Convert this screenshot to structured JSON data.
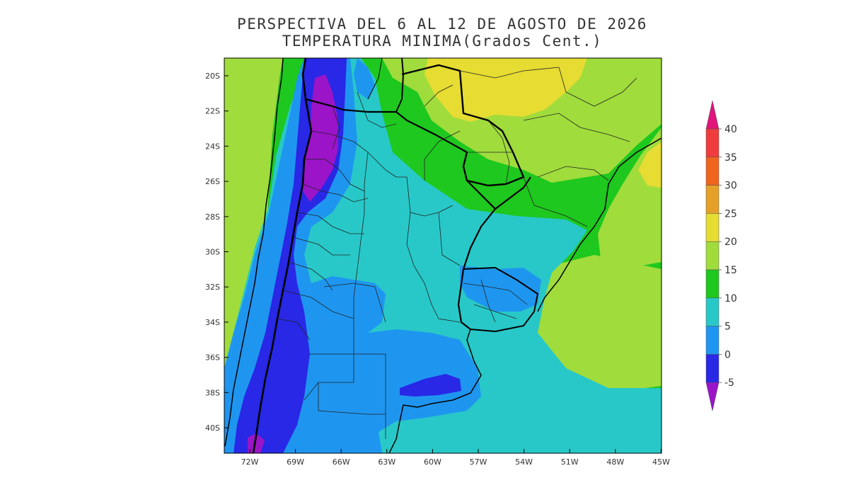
{
  "title": {
    "line1": "PERSPECTIVA DEL 6 AL 12 DE AGOSTO DE 2026",
    "line2": "TEMPERATURA MINIMA(Grados Cent.)"
  },
  "map": {
    "lat_labels": [
      "20S",
      "22S",
      "24S",
      "26S",
      "28S",
      "30S",
      "32S",
      "34S",
      "36S",
      "38S",
      "40S"
    ],
    "lon_labels": [
      "72W",
      "69W",
      "66W",
      "63W",
      "60W",
      "57W",
      "54W",
      "51W",
      "48W",
      "45W"
    ]
  },
  "legend": {
    "labels": [
      "40",
      "35",
      "30",
      "25",
      "20",
      "15",
      "10",
      "5",
      "0",
      "-5"
    ],
    "colors": {
      "above_40": "#e0147a",
      "35_40": "#f03c3c",
      "30_35": "#f0641e",
      "25_30": "#e6a028",
      "20_25": "#e6dc32",
      "15_20": "#a0dc3c",
      "10_15": "#1ec81e",
      "5_10": "#28c8c8",
      "0_5": "#1e96f0",
      "m5_0": "#2828e6",
      "below_m5": "#9b14c8"
    }
  }
}
